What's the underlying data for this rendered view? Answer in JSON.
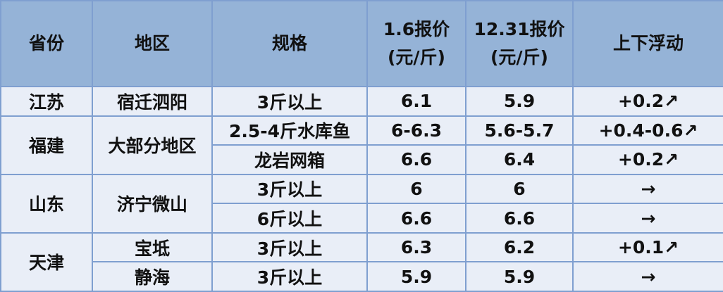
{
  "headers": [
    "省份",
    "地区",
    "规格",
    "1.6报价\n(元/斤)",
    "12.31报价\n(元/斤)",
    "上下浮动"
  ],
  "header_lines": [
    [
      "省份"
    ],
    [
      "地区"
    ],
    [
      "规格"
    ],
    [
      "1.6报价",
      "(元/斤)"
    ],
    [
      "12.31报价",
      "(元/斤)"
    ],
    [
      "上下浮动"
    ]
  ],
  "rows": [
    {
      "province": "江苏",
      "region": "宿迁泗阳",
      "spec": "3斤以上",
      "price_1_6": "6.1",
      "price_12_31": "5.9",
      "change": "+0.2↗"
    },
    {
      "province": "福建",
      "region": "大部分地区",
      "spec": "2.5-4斤水库鱼",
      "price_1_6": "6-6.3",
      "price_12_31": "5.6-5.7",
      "change": "+0.4-0.6↗"
    },
    {
      "spec": "龙岩网箱",
      "price_1_6": "6.6",
      "price_12_31": "6.4",
      "change": "+0.2↗"
    },
    {
      "province": "山东",
      "region": "济宁微山",
      "spec": "3斤以上",
      "price_1_6": "6",
      "price_12_31": "6",
      "change": "→"
    },
    {
      "spec": "6斤以上",
      "price_1_6": "6.6",
      "price_12_31": "6.6",
      "change": "→"
    },
    {
      "province": "天津",
      "region": "宝坻",
      "spec": "3斤以上",
      "price_1_6": "6.3",
      "price_12_31": "6.2",
      "change": "+0.1↗"
    },
    {
      "region": "静海",
      "spec": "3斤以上",
      "price_1_6": "5.9",
      "price_12_31": "5.9",
      "change": "→"
    }
  ],
  "colors": {
    "header_bg": "#95b3d7",
    "body_bg": "#e9eef7",
    "border": "#7f9fd0"
  }
}
